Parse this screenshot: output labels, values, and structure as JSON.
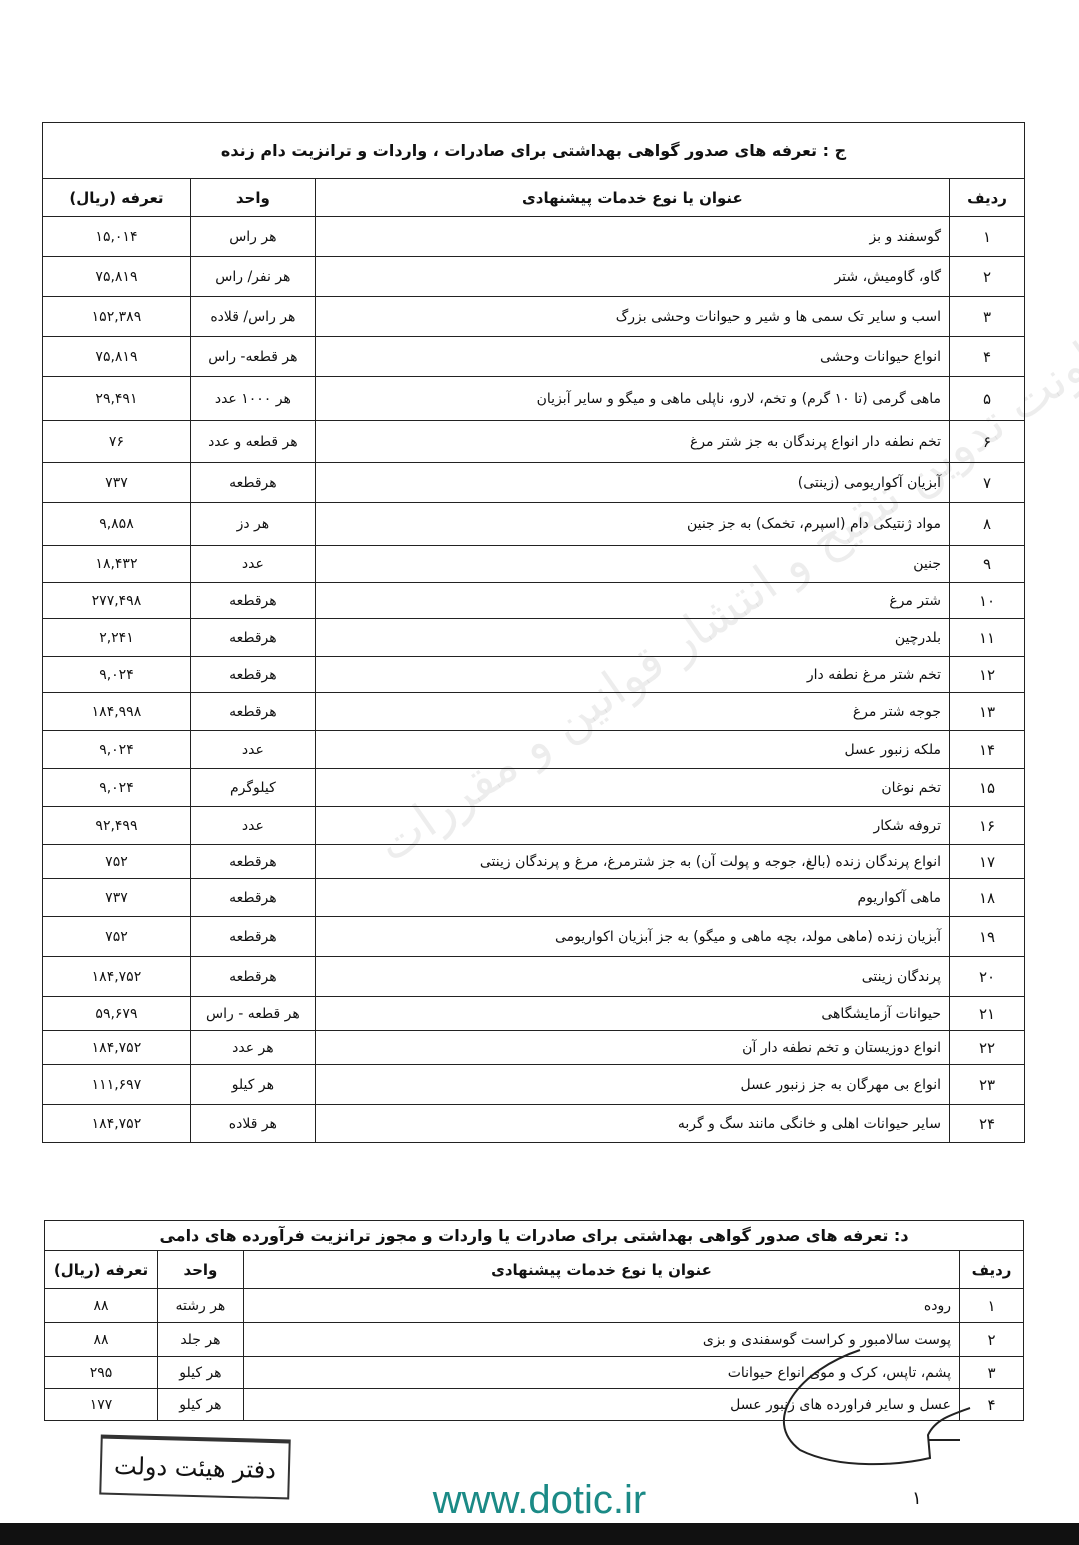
{
  "table_c": {
    "title": "ج : تعرفه های صدور گواهی بهداشتی برای صادرات ، واردات و ترانزیت دام زنده",
    "headers": {
      "row": "ردیف",
      "title": "عنوان یا نوع خدمات پیشنهادی",
      "unit": "واحد",
      "tariff": "تعرفه (ریال)"
    },
    "rows": [
      {
        "n": "۱",
        "desc": "گوسفند و بز",
        "unit": "هر راس",
        "tariff": "۱۵,۰۱۴"
      },
      {
        "n": "۲",
        "desc": "گاو، گاومیش، شتر",
        "unit": "هر نفر/ راس",
        "tariff": "۷۵,۸۱۹"
      },
      {
        "n": "۳",
        "desc": "اسب و سایر تک سمی ها و شیر و حیوانات وحشی بزرگ",
        "unit": "هر راس/ قلاده",
        "tariff": "۱۵۲,۳۸۹"
      },
      {
        "n": "۴",
        "desc": "انواع حیوانات وحشی",
        "unit": "هر قطعه- راس",
        "tariff": "۷۵,۸۱۹"
      },
      {
        "n": "۵",
        "desc": "ماهی گرمی (تا ۱۰ گرم) و تخم، لارو، ناپلی ماهی و میگو و سایر آبزیان",
        "unit": "هر ۱۰۰۰ عدد",
        "tariff": "۲۹,۴۹۱"
      },
      {
        "n": "۶",
        "desc": "تخم نطفه دار انواع پرندگان به جز شتر مرغ",
        "unit": "هر قطعه و عدد",
        "tariff": "۷۶"
      },
      {
        "n": "۷",
        "desc": "آبزیان آکواریومی (زینتی)",
        "unit": "هرقطعه",
        "tariff": "۷۳۷"
      },
      {
        "n": "۸",
        "desc": "مواد ژنتیکی دام (اسپرم، تخمک) به جز جنین",
        "unit": "هر دز",
        "tariff": "۹,۸۵۸"
      },
      {
        "n": "۹",
        "desc": "جنین",
        "unit": "عدد",
        "tariff": "۱۸,۴۳۲"
      },
      {
        "n": "۱۰",
        "desc": "شتر مرغ",
        "unit": "هرقطعه",
        "tariff": "۲۷۷,۴۹۸"
      },
      {
        "n": "۱۱",
        "desc": "بلدرچین",
        "unit": "هرقطعه",
        "tariff": "۲,۲۴۱"
      },
      {
        "n": "۱۲",
        "desc": "تخم شتر مرغ نطفه دار",
        "unit": "هرقطعه",
        "tariff": "۹,۰۲۴"
      },
      {
        "n": "۱۳",
        "desc": "جوجه شتر مرغ",
        "unit": "هرقطعه",
        "tariff": "۱۸۴,۹۹۸"
      },
      {
        "n": "۱۴",
        "desc": "ملکه زنبور عسل",
        "unit": "عدد",
        "tariff": "۹,۰۲۴"
      },
      {
        "n": "۱۵",
        "desc": "تخم نوغان",
        "unit": "کیلوگرم",
        "tariff": "۹,۰۲۴"
      },
      {
        "n": "۱۶",
        "desc": "تروفه شکار",
        "unit": "عدد",
        "tariff": "۹۲,۴۹۹"
      },
      {
        "n": "۱۷",
        "desc": "انواع پرندگان زنده (بالغ، جوجه و پولت آن) به جز شترمرغ، مرغ و پرندگان زینتی",
        "unit": "هرقطعه",
        "tariff": "۷۵۲"
      },
      {
        "n": "۱۸",
        "desc": "ماهی آکواریوم",
        "unit": "هرقطعه",
        "tariff": "۷۳۷"
      },
      {
        "n": "۱۹",
        "desc": "آبزیان زنده (ماهی مولد، بچه ماهی و میگو) به جز آبزیان اکواریومی",
        "unit": "هرقطعه",
        "tariff": "۷۵۲"
      },
      {
        "n": "۲۰",
        "desc": "پرندگان زینتی",
        "unit": "هرقطعه",
        "tariff": "۱۸۴,۷۵۲"
      },
      {
        "n": "۲۱",
        "desc": "حیوانات آزمایشگاهی",
        "unit": "هر قطعه - راس",
        "tariff": "۵۹,۶۷۹"
      },
      {
        "n": "۲۲",
        "desc": "انواع دوزیستان و تخم نطفه دار آن",
        "unit": "هر عدد",
        "tariff": "۱۸۴,۷۵۲"
      },
      {
        "n": "۲۳",
        "desc": "انواع بی مهرگان به جز زنبور عسل",
        "unit": "هر کیلو",
        "tariff": "۱۱۱,۶۹۷"
      },
      {
        "n": "۲۴",
        "desc": "سایر حیوانات اهلی و خانگی مانند سگ و گربه",
        "unit": "هر قلاده",
        "tariff": "۱۸۴,۷۵۲"
      }
    ]
  },
  "table_d": {
    "title": "د: تعرفه های صدور گواهی بهداشتی برای صادرات یا واردات و مجوز ترانزیت فرآورده های دامی",
    "headers": {
      "row": "ردیف",
      "title": "عنوان یا نوع خدمات پیشنهادی",
      "unit": "واحد",
      "tariff": "تعرفه (ریال)"
    },
    "rows": [
      {
        "n": "۱",
        "desc": "روده",
        "unit": "هر رشته",
        "tariff": "۸۸"
      },
      {
        "n": "۲",
        "desc": "پوست سالامبور و کراست گوسفندی و بزی",
        "unit": "هر جلد",
        "tariff": "۸۸"
      },
      {
        "n": "۳",
        "desc": "پشم، تاپس، کرک و موی انواع حیوانات",
        "unit": "هر کیلو",
        "tariff": "۲۹۵"
      },
      {
        "n": "۴",
        "desc": "عسل و سایر فراورده های زنبور عسل",
        "unit": "هر کیلو",
        "tariff": "۱۷۷"
      }
    ]
  },
  "watermark": "معاونت تدوین تنقیح و انتشار قوانین و مقررات",
  "stamp": "دفتر هیئت دولت",
  "website": "www.dotic.ir",
  "page_number": "۱",
  "colors": {
    "website": "#1b8a86"
  }
}
